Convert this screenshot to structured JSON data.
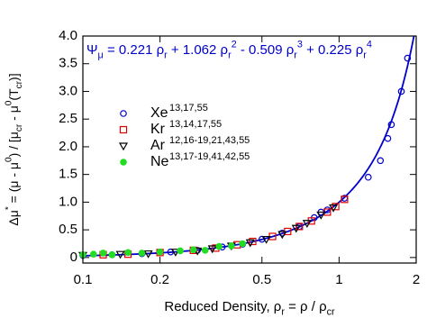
{
  "chart_data": {
    "type": "scatter",
    "annotation": [
      {
        "text": "Ψ",
        "pos": "base"
      },
      {
        "text": "μ",
        "pos": "sub"
      },
      {
        "text": " = 0.221 ρ",
        "pos": "base"
      },
      {
        "text": "r",
        "pos": "sub"
      },
      {
        "text": " + 1.062 ρ",
        "pos": "base"
      },
      {
        "text": "r",
        "pos": "sub"
      },
      {
        "text": "2",
        "pos": "sup"
      },
      {
        "text": " - 0.509 ρ",
        "pos": "base"
      },
      {
        "text": "r",
        "pos": "sub"
      },
      {
        "text": "3",
        "pos": "sup"
      },
      {
        "text": " + 0.225 ρ",
        "pos": "base"
      },
      {
        "text": "r",
        "pos": "sub"
      },
      {
        "text": "4",
        "pos": "sup"
      }
    ],
    "annotation_color": "#0000cc",
    "fit": {
      "coefficients": [
        0.221,
        1.062,
        -0.509,
        0.225
      ],
      "powers": [
        1,
        2,
        3,
        4
      ],
      "color": "#0000cc"
    },
    "xlabel": [
      {
        "text": "Reduced Density, ρ",
        "pos": "base"
      },
      {
        "text": "r",
        "pos": "sub"
      },
      {
        "text": " = ρ / ρ",
        "pos": "base"
      },
      {
        "text": "cr",
        "pos": "sub"
      }
    ],
    "ylabel": [
      {
        "text": "Δμ",
        "pos": "base"
      },
      {
        "text": "*",
        "pos": "sup"
      },
      {
        "text": " = (μ - μ",
        "pos": "base"
      },
      {
        "text": "0",
        "pos": "sup"
      },
      {
        "text": ") / [μ",
        "pos": "base"
      },
      {
        "text": "cr",
        "pos": "sub"
      },
      {
        "text": " - μ",
        "pos": "base"
      },
      {
        "text": "0",
        "pos": "sup"
      },
      {
        "text": "(T",
        "pos": "base"
      },
      {
        "text": "cr",
        "pos": "sub"
      },
      {
        "text": ")]",
        "pos": "base"
      }
    ],
    "xscale": "log",
    "xlim": [
      0.1,
      2
    ],
    "xticks": [
      0.1,
      0.2,
      0.5,
      1,
      2
    ],
    "ylim": [
      -0.1,
      4
    ],
    "yticks": [
      0,
      0.5,
      {
        "value": 1,
        "label": "1.0"
      },
      1.5,
      {
        "value": 2,
        "label": "2.0"
      },
      2.5,
      {
        "value": 3,
        "label": "3.0"
      },
      3.5,
      {
        "value": 4,
        "label": "4.0"
      }
    ],
    "series": [
      {
        "name": "Xe",
        "refs": "13,17,55",
        "marker": "circle",
        "filled": false,
        "color": "#0000cc",
        "x": [
          0.1,
          0.13,
          0.17,
          0.22,
          0.28,
          0.35,
          0.42,
          0.5,
          0.6,
          0.7,
          0.8,
          0.85,
          0.9,
          1.05,
          1.3,
          1.45,
          1.55,
          1.6,
          1.75,
          1.85
        ],
        "values": [
          0.04,
          0.05,
          0.07,
          0.1,
          0.13,
          0.19,
          0.24,
          0.33,
          0.44,
          0.56,
          0.72,
          0.82,
          0.86,
          1.07,
          1.45,
          1.75,
          2.15,
          2.4,
          3.0,
          3.6
        ]
      },
      {
        "name": "Kr",
        "refs": "13,14,17,55",
        "marker": "square",
        "filled": false,
        "color": "#dd0000",
        "x": [
          0.12,
          0.15,
          0.2,
          0.27,
          0.33,
          0.4,
          0.46,
          0.55,
          0.63,
          0.7,
          0.78,
          0.9,
          0.97,
          1.05
        ],
        "values": [
          0.05,
          0.06,
          0.09,
          0.13,
          0.17,
          0.23,
          0.29,
          0.38,
          0.47,
          0.56,
          0.66,
          0.82,
          0.92,
          1.05
        ]
      },
      {
        "name": "Ar",
        "refs": "12,16-19,21,43,55",
        "marker": "triangle-down",
        "filled": false,
        "color": "#000000",
        "x": [
          0.1,
          0.14,
          0.18,
          0.23,
          0.28,
          0.32,
          0.38,
          0.45,
          0.52,
          0.6,
          0.68,
          0.75,
          0.85,
          0.95
        ],
        "values": [
          0.04,
          0.06,
          0.07,
          0.1,
          0.12,
          0.16,
          0.21,
          0.27,
          0.33,
          0.42,
          0.53,
          0.62,
          0.77,
          0.9
        ]
      },
      {
        "name": "Ne",
        "refs": "13,17-19,41,42,55",
        "marker": "circle",
        "filled": true,
        "color": "#22dd22",
        "x": [
          0.1,
          0.11,
          0.12,
          0.13,
          0.15,
          0.17,
          0.2,
          0.24,
          0.27,
          0.3,
          0.34,
          0.38,
          0.42
        ],
        "values": [
          0.05,
          0.06,
          0.08,
          0.05,
          0.09,
          0.08,
          0.1,
          0.12,
          0.14,
          0.13,
          0.2,
          0.21,
          0.25
        ]
      }
    ]
  }
}
